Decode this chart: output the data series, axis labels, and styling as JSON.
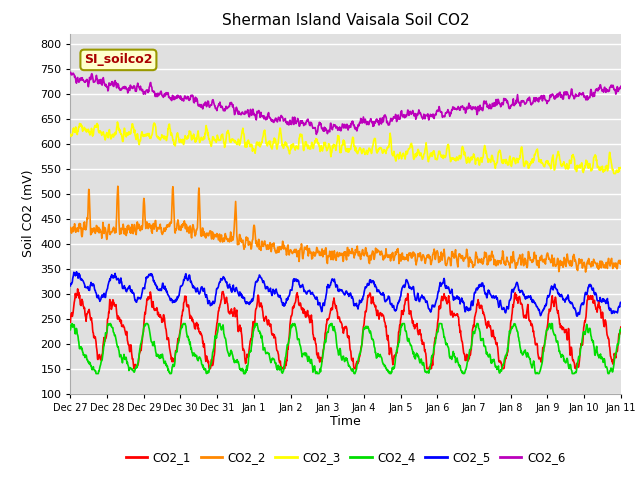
{
  "title": "Sherman Island Vaisala Soil CO2",
  "ylabel": "Soil CO2 (mV)",
  "xlabel": "Time",
  "annotation": "SI_soilco2",
  "ylim": [
    100,
    820
  ],
  "yticks": [
    100,
    150,
    200,
    250,
    300,
    350,
    400,
    450,
    500,
    550,
    600,
    650,
    700,
    750,
    800
  ],
  "bg_color": "#e8e8e8",
  "series_colors": {
    "CO2_1": "#ff0000",
    "CO2_2": "#ff8800",
    "CO2_3": "#ffff00",
    "CO2_4": "#00dd00",
    "CO2_5": "#0000ff",
    "CO2_6": "#bb00bb"
  },
  "legend_colors": [
    "#ff0000",
    "#ff8800",
    "#ffff00",
    "#00dd00",
    "#0000ff",
    "#bb00bb"
  ],
  "legend_labels": [
    "CO2_1",
    "CO2_2",
    "CO2_3",
    "CO2_4",
    "CO2_5",
    "CO2_6"
  ],
  "x_tick_labels": [
    "Dec 27",
    "Dec 28",
    "Dec 29",
    "Dec 30",
    "Dec 31",
    "Jan 1",
    "Jan 2",
    "Jan 3",
    "Jan 4",
    "Jan 5",
    "Jan 6",
    "Jan 7",
    "Jan 8",
    "Jan 9",
    "Jan 10",
    "Jan 11"
  ],
  "n_days": 15,
  "pts_per_day": 96,
  "seed": 42
}
